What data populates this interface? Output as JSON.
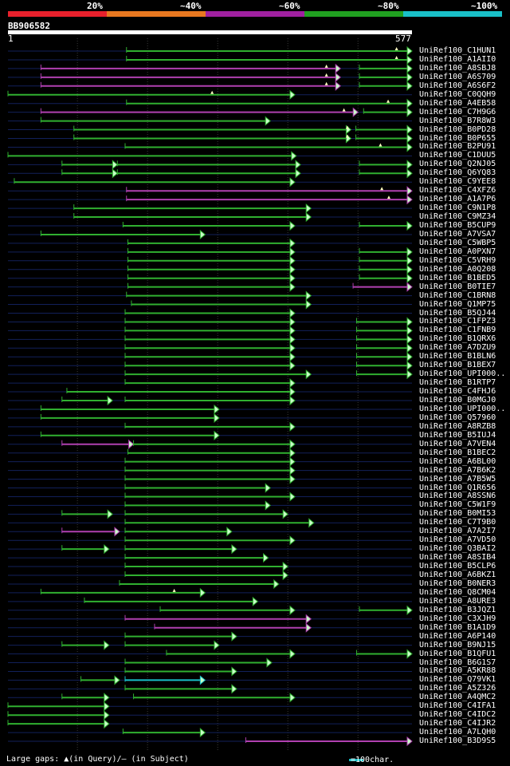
{
  "legend": [
    {
      "label": "20%",
      "color": "#e8202c"
    },
    {
      "label": "~40%",
      "color": "#e87820"
    },
    {
      "label": "~60%",
      "color": "#a020a0"
    },
    {
      "label": "~80%",
      "color": "#20a020"
    },
    {
      "label": "~100%",
      "color": "#19c0c8"
    }
  ],
  "query": {
    "id": "BB906582",
    "start": "1",
    "end": "577",
    "length": 577
  },
  "colors": {
    "magenta": "#b040b0",
    "green": "#30b030",
    "cyan": "#19c0c8",
    "arrow_fill": "#c8ffc8",
    "track": "#12205a"
  },
  "hits": [
    {
      "name": "UniRef100_C1HUN1",
      "segs": [
        [
          170,
          577,
          "g"
        ]
      ],
      "marks": [
        555
      ]
    },
    {
      "name": "UniRef100_A1AII0",
      "segs": [
        [
          170,
          577,
          "g"
        ]
      ],
      "marks": [
        555
      ]
    },
    {
      "name": "UniRef100_A8SBJ8",
      "segs": [
        [
          48,
          475,
          "m"
        ],
        [
          502,
          577,
          "g"
        ]
      ],
      "marks": [
        455
      ]
    },
    {
      "name": "UniRef100_A6S709",
      "segs": [
        [
          48,
          475,
          "m"
        ],
        [
          502,
          577,
          "g"
        ]
      ],
      "marks": [
        455
      ]
    },
    {
      "name": "UniRef100_A6S6F2",
      "segs": [
        [
          48,
          475,
          "m"
        ],
        [
          502,
          577,
          "g"
        ]
      ],
      "marks": [
        455
      ]
    },
    {
      "name": "UniRef100_C0QQH9",
      "segs": [
        [
          1,
          410,
          "g"
        ]
      ],
      "marks": [
        292
      ]
    },
    {
      "name": "UniRef100_A4EB58",
      "segs": [
        [
          170,
          577,
          "g"
        ]
      ],
      "marks": [
        543
      ]
    },
    {
      "name": "UniRef100_C7H9G6",
      "segs": [
        [
          48,
          500,
          "m"
        ],
        [
          508,
          577,
          "g"
        ]
      ],
      "marks": [
        480
      ]
    },
    {
      "name": "UniRef100_B7R8W3",
      "segs": [
        [
          48,
          375,
          "g"
        ]
      ],
      "marks": []
    },
    {
      "name": "UniRef100_B0PD28",
      "segs": [
        [
          95,
          490,
          "g"
        ],
        [
          497,
          577,
          "g"
        ]
      ],
      "marks": [
        485
      ]
    },
    {
      "name": "UniRef100_B0P655",
      "segs": [
        [
          95,
          490,
          "g"
        ],
        [
          497,
          577,
          "g"
        ]
      ],
      "marks": [
        485
      ]
    },
    {
      "name": "UniRef100_B2PU91",
      "segs": [
        [
          168,
          577,
          "g"
        ]
      ],
      "marks": [
        532
      ]
    },
    {
      "name": "UniRef100_C1DUU5",
      "segs": [
        [
          1,
          412,
          "g"
        ]
      ],
      "marks": []
    },
    {
      "name": "UniRef100_Q2NJ05",
      "segs": [
        [
          78,
          157,
          "g"
        ],
        [
          157,
          418,
          "g"
        ],
        [
          502,
          577,
          "g"
        ]
      ],
      "marks": []
    },
    {
      "name": "UniRef100_Q6YQ83",
      "segs": [
        [
          78,
          157,
          "g"
        ],
        [
          157,
          418,
          "g"
        ],
        [
          502,
          577,
          "g"
        ]
      ],
      "marks": []
    },
    {
      "name": "UniRef100_C9YEE8",
      "segs": [
        [
          10,
          410,
          "g"
        ]
      ],
      "marks": []
    },
    {
      "name": "UniRef100_C4XFZ6",
      "segs": [
        [
          170,
          577,
          "m"
        ]
      ],
      "marks": [
        534
      ]
    },
    {
      "name": "UniRef100_A1A7P6",
      "segs": [
        [
          170,
          577,
          "m"
        ]
      ],
      "marks": [
        544
      ]
    },
    {
      "name": "UniRef100_C9N1P8",
      "segs": [
        [
          95,
          433,
          "g"
        ]
      ],
      "marks": []
    },
    {
      "name": "UniRef100_C9MZ34",
      "segs": [
        [
          95,
          433,
          "g"
        ]
      ],
      "marks": []
    },
    {
      "name": "UniRef100_B5CUP9",
      "segs": [
        [
          165,
          410,
          "g"
        ],
        [
          502,
          577,
          "g"
        ]
      ],
      "marks": []
    },
    {
      "name": "UniRef100_A7VSA7",
      "segs": [
        [
          48,
          282,
          "g"
        ]
      ],
      "marks": []
    },
    {
      "name": "UniRef100_C5WBP5",
      "segs": [
        [
          172,
          410,
          "g"
        ]
      ],
      "marks": []
    },
    {
      "name": "UniRef100_A0PXN7",
      "segs": [
        [
          172,
          410,
          "g"
        ],
        [
          502,
          577,
          "g"
        ]
      ],
      "marks": []
    },
    {
      "name": "UniRef100_C5VRH9",
      "segs": [
        [
          172,
          410,
          "g"
        ],
        [
          502,
          577,
          "g"
        ]
      ],
      "marks": []
    },
    {
      "name": "UniRef100_A0Q208",
      "segs": [
        [
          172,
          410,
          "g"
        ],
        [
          502,
          577,
          "g"
        ]
      ],
      "marks": []
    },
    {
      "name": "UniRef100_B1BED5",
      "segs": [
        [
          172,
          410,
          "g"
        ],
        [
          502,
          577,
          "g"
        ]
      ],
      "marks": []
    },
    {
      "name": "UniRef100_B0TIE7",
      "segs": [
        [
          172,
          410,
          "g"
        ],
        [
          493,
          577,
          "m"
        ]
      ],
      "marks": []
    },
    {
      "name": "UniRef100_C1BRN8",
      "segs": [
        [
          170,
          433,
          "g"
        ]
      ],
      "marks": []
    },
    {
      "name": "UniRef100_Q1MP75",
      "segs": [
        [
          177,
          433,
          "g"
        ]
      ],
      "marks": []
    },
    {
      "name": "UniRef100_B5QJ44",
      "segs": [
        [
          168,
          410,
          "g"
        ]
      ],
      "marks": []
    },
    {
      "name": "UniRef100_C1FPZ3",
      "segs": [
        [
          168,
          410,
          "g"
        ],
        [
          498,
          577,
          "g"
        ]
      ],
      "marks": []
    },
    {
      "name": "UniRef100_C1FNB9",
      "segs": [
        [
          168,
          410,
          "g"
        ],
        [
          498,
          577,
          "g"
        ]
      ],
      "marks": []
    },
    {
      "name": "UniRef100_B1QRX6",
      "segs": [
        [
          168,
          410,
          "g"
        ],
        [
          498,
          577,
          "g"
        ]
      ],
      "marks": []
    },
    {
      "name": "UniRef100_A7DZU9",
      "segs": [
        [
          168,
          410,
          "g"
        ],
        [
          498,
          577,
          "g"
        ]
      ],
      "marks": []
    },
    {
      "name": "UniRef100_B1BLN6",
      "segs": [
        [
          168,
          410,
          "g"
        ],
        [
          498,
          577,
          "g"
        ]
      ],
      "marks": []
    },
    {
      "name": "UniRef100_B1BEX7",
      "segs": [
        [
          168,
          410,
          "g"
        ],
        [
          498,
          577,
          "g"
        ]
      ],
      "marks": []
    },
    {
      "name": "UniRef100_UPI000..",
      "segs": [
        [
          168,
          433,
          "g"
        ],
        [
          498,
          577,
          "g"
        ]
      ],
      "marks": []
    },
    {
      "name": "UniRef100_B1RTP7",
      "segs": [
        [
          168,
          410,
          "g"
        ]
      ],
      "marks": []
    },
    {
      "name": "UniRef100_C4FHJ6",
      "segs": [
        [
          85,
          410,
          "g"
        ]
      ],
      "marks": []
    },
    {
      "name": "UniRef100_B0MGJ0",
      "segs": [
        [
          78,
          150,
          "g"
        ],
        [
          168,
          410,
          "g"
        ]
      ],
      "marks": []
    },
    {
      "name": "UniRef100_UPI000..",
      "segs": [
        [
          48,
          302,
          "g"
        ]
      ],
      "marks": []
    },
    {
      "name": "UniRef100_Q57960",
      "segs": [
        [
          48,
          302,
          "g"
        ]
      ],
      "marks": []
    },
    {
      "name": "UniRef100_A8RZB8",
      "segs": [
        [
          168,
          410,
          "g"
        ]
      ],
      "marks": []
    },
    {
      "name": "UniRef100_B5IUJ4",
      "segs": [
        [
          48,
          302,
          "g"
        ]
      ],
      "marks": []
    },
    {
      "name": "UniRef100_A7VEN4",
      "segs": [
        [
          78,
          180,
          "m"
        ],
        [
          180,
          410,
          "g"
        ]
      ],
      "marks": []
    },
    {
      "name": "UniRef100_B1BEC2",
      "segs": [
        [
          172,
          410,
          "g"
        ]
      ],
      "marks": []
    },
    {
      "name": "UniRef100_A6BL00",
      "segs": [
        [
          168,
          410,
          "g"
        ]
      ],
      "marks": []
    },
    {
      "name": "UniRef100_A7B6K2",
      "segs": [
        [
          168,
          410,
          "g"
        ]
      ],
      "marks": []
    },
    {
      "name": "UniRef100_A7B5W5",
      "segs": [
        [
          168,
          410,
          "g"
        ]
      ],
      "marks": []
    },
    {
      "name": "UniRef100_Q1R656",
      "segs": [
        [
          168,
          375,
          "g"
        ]
      ],
      "marks": []
    },
    {
      "name": "UniRef100_A8SSN6",
      "segs": [
        [
          168,
          410,
          "g"
        ]
      ],
      "marks": []
    },
    {
      "name": "UniRef100_C5W1F9",
      "segs": [
        [
          168,
          375,
          "g"
        ]
      ],
      "marks": []
    },
    {
      "name": "UniRef100_B0MI53",
      "segs": [
        [
          78,
          150,
          "g"
        ],
        [
          168,
          400,
          "g"
        ]
      ],
      "marks": []
    },
    {
      "name": "UniRef100_C7T9B0",
      "segs": [
        [
          168,
          437,
          "g"
        ]
      ],
      "marks": []
    },
    {
      "name": "UniRef100_A7A2I7",
      "segs": [
        [
          78,
          160,
          "m"
        ],
        [
          168,
          320,
          "g"
        ]
      ],
      "marks": []
    },
    {
      "name": "UniRef100_A7VD50",
      "segs": [
        [
          168,
          410,
          "g"
        ]
      ],
      "marks": []
    },
    {
      "name": "UniRef100_Q3BAI2",
      "segs": [
        [
          78,
          145,
          "g"
        ],
        [
          168,
          327,
          "g"
        ]
      ],
      "marks": []
    },
    {
      "name": "UniRef100_A8SIB4",
      "segs": [
        [
          168,
          372,
          "g"
        ]
      ],
      "marks": []
    },
    {
      "name": "UniRef100_B5CLP6",
      "segs": [
        [
          168,
          400,
          "g"
        ]
      ],
      "marks": []
    },
    {
      "name": "UniRef100_A6BKZ1",
      "segs": [
        [
          168,
          400,
          "g"
        ]
      ],
      "marks": []
    },
    {
      "name": "UniRef100_B0NER3",
      "segs": [
        [
          160,
          387,
          "g"
        ]
      ],
      "marks": []
    },
    {
      "name": "UniRef100_Q8CM04",
      "segs": [
        [
          48,
          282,
          "g"
        ]
      ],
      "marks": [
        238
      ]
    },
    {
      "name": "UniRef100_A8URE3",
      "segs": [
        [
          110,
          357,
          "g"
        ]
      ],
      "marks": []
    },
    {
      "name": "UniRef100_B3JQZ1",
      "segs": [
        [
          218,
          410,
          "g"
        ],
        [
          502,
          577,
          "g"
        ]
      ],
      "marks": []
    },
    {
      "name": "UniRef100_C3XJH9",
      "segs": [
        [
          168,
          433,
          "m"
        ]
      ],
      "marks": []
    },
    {
      "name": "UniRef100_B1A1D9",
      "segs": [
        [
          210,
          433,
          "m"
        ]
      ],
      "marks": []
    },
    {
      "name": "UniRef100_A6P140",
      "segs": [
        [
          168,
          327,
          "g"
        ]
      ],
      "marks": []
    },
    {
      "name": "UniRef100_B9NJ15",
      "segs": [
        [
          78,
          145,
          "g"
        ],
        [
          168,
          302,
          "g"
        ]
      ],
      "marks": []
    },
    {
      "name": "UniRef100_B1QFU1",
      "segs": [
        [
          227,
          410,
          "g"
        ],
        [
          498,
          577,
          "g"
        ]
      ],
      "marks": []
    },
    {
      "name": "UniRef100_B6G1S7",
      "segs": [
        [
          168,
          377,
          "g"
        ]
      ],
      "marks": []
    },
    {
      "name": "UniRef100_A5KR88",
      "segs": [
        [
          168,
          327,
          "g"
        ]
      ],
      "marks": []
    },
    {
      "name": "UniRef100_Q79VK1",
      "segs": [
        [
          105,
          160,
          "g"
        ],
        [
          168,
          282,
          "c"
        ]
      ],
      "marks": []
    },
    {
      "name": "UniRef100_A5Z326",
      "segs": [
        [
          168,
          327,
          "g"
        ]
      ],
      "marks": []
    },
    {
      "name": "UniRef100_A4QMC2",
      "segs": [
        [
          78,
          145,
          "g"
        ],
        [
          180,
          410,
          "g"
        ]
      ],
      "marks": []
    },
    {
      "name": "UniRef100_C4IFA1",
      "segs": [
        [
          1,
          145,
          "g"
        ]
      ],
      "marks": []
    },
    {
      "name": "UniRef100_C4IDC2",
      "segs": [
        [
          1,
          145,
          "g"
        ]
      ],
      "marks": []
    },
    {
      "name": "UniRef100_C4IJR2",
      "segs": [
        [
          1,
          145,
          "g"
        ]
      ],
      "marks": []
    },
    {
      "name": "UniRef100_A7LQH0",
      "segs": [
        [
          165,
          282,
          "g"
        ]
      ],
      "marks": []
    },
    {
      "name": "UniRef100_B3D9S5",
      "segs": [
        [
          340,
          577,
          "m"
        ]
      ],
      "marks": []
    }
  ],
  "footer": {
    "left": "Large gaps: ▲(in Query)/– (in Subject)",
    "scale": "=100char."
  }
}
